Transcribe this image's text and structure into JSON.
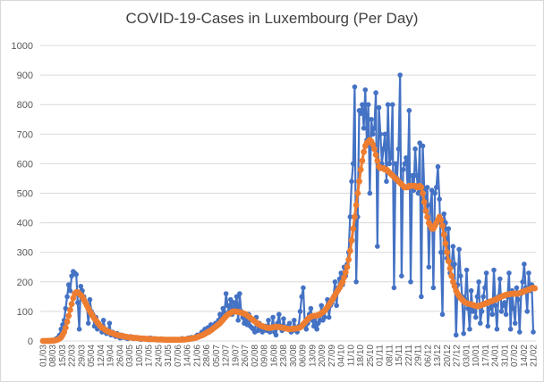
{
  "chart_data": {
    "type": "line",
    "title": "COVID-19-Cases in Luxembourg (Per Day)",
    "xlabel": "",
    "ylabel": "",
    "ylim": [
      0,
      1000
    ],
    "y_ticks": [
      0,
      100,
      200,
      300,
      400,
      500,
      600,
      700,
      800,
      900,
      1000
    ],
    "x_tick_labels": [
      "01/03",
      "08/03",
      "15/03",
      "22/03",
      "29/03",
      "05/04",
      "12/04",
      "19/04",
      "26/04",
      "03/05",
      "10/05",
      "17/05",
      "24/05",
      "31/05",
      "07/06",
      "14/06",
      "21/06",
      "28/06",
      "05/07",
      "12/07",
      "19/07",
      "26/07",
      "02/08",
      "09/08",
      "16/08",
      "23/08",
      "30/08",
      "06/09",
      "13/09",
      "20/09",
      "27/09",
      "04/10",
      "11/10",
      "18/10",
      "25/10",
      "01/11",
      "08/11",
      "15/11",
      "22/11",
      "29/11",
      "06/12",
      "13/12",
      "20/12",
      "27/12",
      "03/01",
      "10/01",
      "17/01",
      "24/01",
      "31/01",
      "07/02",
      "14/02",
      "21/02"
    ],
    "grid": true,
    "legend": "none",
    "colors": {
      "daily": "#4472c4",
      "average": "#ed7d31",
      "grid": "#d9d9d9",
      "text": "#595959",
      "title": "#404040"
    },
    "series": [
      {
        "values": [
          0,
          0,
          0,
          0,
          1,
          2,
          3,
          2,
          5,
          8,
          12,
          20,
          40,
          55,
          70,
          110,
          150,
          190,
          170,
          220,
          235,
          230,
          225,
          130,
          40,
          185,
          170,
          150,
          130,
          120,
          60,
          140,
          100,
          90,
          50,
          80,
          40,
          60,
          50,
          30,
          70,
          40,
          25,
          35,
          60,
          20,
          30,
          20,
          15,
          25,
          15,
          10,
          20,
          12,
          15,
          10,
          8,
          12,
          15,
          10,
          8,
          10,
          12,
          8,
          6,
          5,
          10,
          8,
          6,
          5,
          4,
          10,
          6,
          5,
          8,
          4,
          3,
          5,
          7,
          5,
          3,
          4,
          2,
          5,
          4,
          3,
          6,
          4,
          5,
          3,
          4,
          5,
          8,
          3,
          4,
          6,
          10,
          8,
          12,
          7,
          10,
          15,
          20,
          14,
          22,
          30,
          25,
          40,
          35,
          45,
          30,
          55,
          50,
          45,
          60,
          55,
          70,
          90,
          75,
          110,
          95,
          160,
          120,
          100,
          140,
          90,
          130,
          110,
          150,
          70,
          160,
          100,
          80,
          60,
          70,
          55,
          90,
          50,
          45,
          40,
          30,
          80,
          35,
          60,
          40,
          30,
          40,
          50,
          35,
          70,
          30,
          45,
          80,
          30,
          20,
          60,
          90,
          50,
          35,
          75,
          45,
          40,
          50,
          60,
          30,
          35,
          70,
          40,
          30,
          50,
          100,
          150,
          180,
          60,
          40,
          60,
          90,
          110,
          70,
          50,
          80,
          40,
          60,
          70,
          120,
          70,
          80,
          110,
          140,
          80,
          120,
          130,
          150,
          200,
          120,
          180,
          210,
          230,
          190,
          250,
          220,
          260,
          300,
          420,
          540,
          600,
          860,
          200,
          420,
          780,
          770,
          800,
          720,
          850,
          680,
          800,
          500,
          750,
          700,
          720,
          840,
          320,
          790,
          700,
          600,
          650,
          700,
          540,
          800,
          600,
          620,
          800,
          180,
          600,
          550,
          650,
          900,
          220,
          580,
          600,
          620,
          520,
          780,
          200,
          560,
          510,
          650,
          560,
          500,
          670,
          150,
          660,
          510,
          450,
          520,
          250,
          460,
          510,
          180,
          500,
          520,
          590,
          480,
          300,
          90,
          430,
          400,
          280,
          380,
          230,
          250,
          320,
          260,
          20,
          190,
          310,
          220,
          150,
          25,
          140,
          240,
          110,
          40,
          170,
          100,
          120,
          80,
          150,
          200,
          60,
          100,
          150,
          180,
          230,
          50,
          110,
          130,
          90,
          240,
          120,
          40,
          150,
          210,
          100,
          120,
          130,
          90,
          150,
          230,
          40,
          170,
          110,
          60,
          180,
          140,
          30,
          160,
          200,
          260,
          180,
          100,
          230,
          170,
          190,
          30
        ]
      },
      {
        "values": [
          0,
          0,
          0,
          0,
          0,
          0,
          1,
          1,
          2,
          3,
          5,
          8,
          12,
          20,
          30,
          45,
          65,
          85,
          105,
          125,
          145,
          160,
          165,
          165,
          160,
          155,
          150,
          140,
          130,
          120,
          110,
          100,
          92,
          84,
          76,
          70,
          62,
          56,
          50,
          45,
          42,
          38,
          35,
          32,
          30,
          28,
          26,
          24,
          22,
          20,
          19,
          18,
          17,
          16,
          15,
          14,
          13,
          12,
          12,
          11,
          11,
          10,
          10,
          9,
          9,
          8,
          8,
          8,
          7,
          7,
          7,
          6,
          6,
          6,
          6,
          5,
          5,
          5,
          5,
          5,
          4,
          4,
          4,
          4,
          4,
          4,
          4,
          4,
          4,
          4,
          4,
          4,
          5,
          5,
          5,
          6,
          6,
          7,
          8,
          9,
          10,
          11,
          13,
          15,
          17,
          19,
          21,
          24,
          27,
          30,
          33,
          36,
          40,
          44,
          48,
          52,
          56,
          60,
          66,
          72,
          78,
          84,
          88,
          92,
          95,
          98,
          100,
          100,
          99,
          98,
          97,
          96,
          94,
          92,
          90,
          86,
          82,
          78,
          74,
          70,
          66,
          62,
          58,
          55,
          52,
          50,
          48,
          46,
          45,
          44,
          44,
          45,
          46,
          47,
          48,
          48,
          47,
          46,
          45,
          44,
          43,
          42,
          41,
          40,
          40,
          41,
          42,
          42,
          43,
          44,
          46,
          50,
          56,
          62,
          68,
          74,
          78,
          82,
          84,
          85,
          85,
          86,
          88,
          90,
          94,
          98,
          102,
          108,
          115,
          122,
          130,
          138,
          146,
          155,
          164,
          172,
          180,
          190,
          200,
          215,
          232,
          250,
          275,
          305,
          340,
          380,
          420,
          460,
          500,
          540,
          580,
          610,
          640,
          660,
          670,
          675,
          680,
          675,
          665,
          650,
          630,
          610,
          590,
          585,
          585,
          585,
          580,
          580,
          575,
          570,
          565,
          560,
          555,
          550,
          545,
          540,
          535,
          530,
          525,
          520,
          520,
          520,
          525,
          525,
          525,
          525,
          525,
          520,
          520,
          525,
          520,
          500,
          470,
          440,
          420,
          400,
          390,
          380,
          380,
          390,
          400,
          410,
          420,
          410,
          390,
          360,
          330,
          300,
          270,
          245,
          220,
          200,
          185,
          170,
          160,
          152,
          145,
          140,
          135,
          130,
          128,
          126,
          125,
          124,
          122,
          120,
          118,
          118,
          118,
          120,
          122,
          124,
          126,
          128,
          130,
          132,
          134,
          136,
          138,
          140,
          142,
          145,
          148,
          150,
          152,
          154,
          156,
          157,
          158,
          159,
          160,
          160,
          160,
          160,
          160,
          162,
          164,
          166,
          168,
          170,
          172,
          174,
          176,
          178,
          180,
          178
        ]
      }
    ]
  }
}
